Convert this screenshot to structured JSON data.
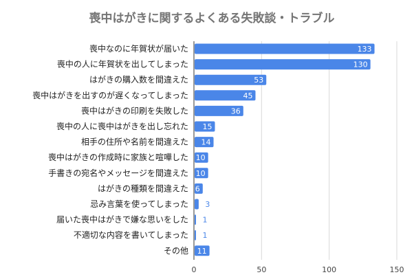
{
  "chart_data": {
    "type": "bar",
    "orientation": "horizontal",
    "title": "喪中はがきに関するよくある失敗談・トラブル",
    "xlabel": "",
    "ylabel": "",
    "categories": [
      "喪中なのに年賀状が届いた",
      "喪中の人に年賀状を出してしまった",
      "はがきの購入数を間違えた",
      "喪中はがきを出すのが遅くなってしまった",
      "喪中はがきの印刷を失敗した",
      "喪中の人に喪中はがきを出し忘れた",
      "相手の住所や名前を間違えた",
      "喪中はがきの作成時に家族と喧嘩した",
      "手書きの宛名やメッセージを間違えた",
      "はがきの種類を間違えた",
      "忌み言葉を使ってしまった",
      "届いた喪中はがきで嫌な思いをした",
      "不適切な内容を書いてしまった",
      "その他"
    ],
    "values": [
      133,
      130,
      53,
      45,
      36,
      15,
      14,
      10,
      10,
      6,
      3,
      1,
      1,
      11
    ],
    "xlim": [
      0,
      150
    ],
    "xticks": [
      "0",
      "50",
      "100",
      "150"
    ],
    "grid": true,
    "legend": "none",
    "colors": {
      "bar": "#4a86e8",
      "label_inside": "#ffffff",
      "label_outside": "#4a86e8",
      "grid": "#d9d9d9"
    }
  }
}
